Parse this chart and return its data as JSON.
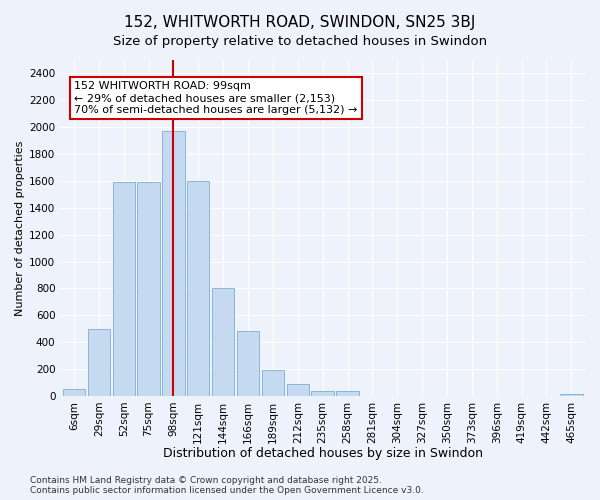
{
  "title": "152, WHITWORTH ROAD, SWINDON, SN25 3BJ",
  "subtitle": "Size of property relative to detached houses in Swindon",
  "xlabel": "Distribution of detached houses by size in Swindon",
  "ylabel": "Number of detached properties",
  "categories": [
    "6sqm",
    "29sqm",
    "52sqm",
    "75sqm",
    "98sqm",
    "121sqm",
    "144sqm",
    "166sqm",
    "189sqm",
    "212sqm",
    "235sqm",
    "258sqm",
    "281sqm",
    "304sqm",
    "327sqm",
    "350sqm",
    "373sqm",
    "396sqm",
    "419sqm",
    "442sqm",
    "465sqm"
  ],
  "values": [
    50,
    500,
    1590,
    1590,
    1970,
    1600,
    800,
    480,
    195,
    90,
    35,
    35,
    0,
    0,
    0,
    0,
    0,
    0,
    0,
    0,
    15
  ],
  "bar_color": "#c5d9f0",
  "bar_edge_color": "#7badd4",
  "red_line_x": 4,
  "red_line_color": "#cc0000",
  "annotation_text_line1": "152 WHITWORTH ROAD: 99sqm",
  "annotation_text_line2": "← 29% of detached houses are smaller (2,153)",
  "annotation_text_line3": "70% of semi-detached houses are larger (5,132) →",
  "annotation_box_color": "#ffffff",
  "annotation_box_edge_color": "#cc0000",
  "ylim": [
    0,
    2500
  ],
  "yticks": [
    0,
    200,
    400,
    600,
    800,
    1000,
    1200,
    1400,
    1600,
    1800,
    2000,
    2200,
    2400
  ],
  "background_color": "#eef2fa",
  "grid_color": "#ffffff",
  "footer_text": "Contains HM Land Registry data © Crown copyright and database right 2025.\nContains public sector information licensed under the Open Government Licence v3.0.",
  "title_fontsize": 11,
  "subtitle_fontsize": 9.5,
  "xlabel_fontsize": 9,
  "ylabel_fontsize": 8,
  "tick_fontsize": 7.5,
  "footer_fontsize": 6.5,
  "annotation_fontsize": 8
}
